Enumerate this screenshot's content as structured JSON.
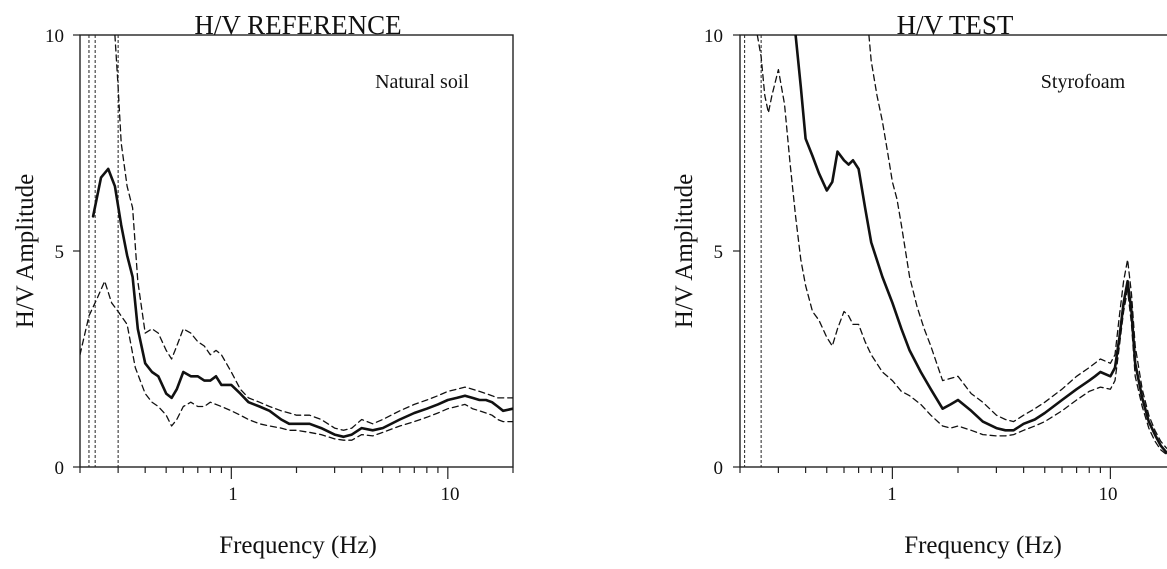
{
  "chart_data": [
    {
      "type": "line",
      "title": "H/V REFERENCE",
      "annotation": "Natural soil",
      "xlabel": "Frequency (Hz)",
      "ylabel": "H/V Amplitude",
      "x_scale": "log",
      "xlim": [
        0.2,
        20
      ],
      "ylim": [
        0,
        10
      ],
      "x_tick_labels": [
        "1",
        "10"
      ],
      "y_tick_labels": [
        "0",
        "5",
        "10"
      ],
      "grid": false,
      "vertical_lines_hz": [
        0.22,
        0.235,
        0.3
      ],
      "series": [
        {
          "style": "solid",
          "x": [
            0.23,
            0.25,
            0.27,
            0.29,
            0.31,
            0.33,
            0.35,
            0.37,
            0.4,
            0.43,
            0.46,
            0.5,
            0.53,
            0.56,
            0.6,
            0.65,
            0.7,
            0.75,
            0.8,
            0.85,
            0.9,
            1.0,
            1.1,
            1.2,
            1.35,
            1.5,
            1.7,
            1.85,
            2.0,
            2.3,
            2.6,
            3.0,
            3.3,
            3.6,
            4.0,
            4.5,
            5.0,
            6.0,
            7.0,
            8.0,
            9.0,
            10.0,
            11.0,
            12.0,
            13.0,
            14.0,
            15.0,
            16.0,
            17.0,
            18.0,
            20.0
          ],
          "y": [
            5.8,
            6.7,
            6.9,
            6.5,
            5.6,
            4.9,
            4.4,
            3.2,
            2.4,
            2.2,
            2.1,
            1.7,
            1.6,
            1.8,
            2.2,
            2.1,
            2.1,
            2.0,
            2.0,
            2.1,
            1.9,
            1.9,
            1.7,
            1.5,
            1.4,
            1.3,
            1.1,
            1.0,
            1.0,
            1.0,
            0.9,
            0.75,
            0.7,
            0.75,
            0.9,
            0.85,
            0.9,
            1.1,
            1.25,
            1.35,
            1.45,
            1.55,
            1.6,
            1.65,
            1.6,
            1.55,
            1.55,
            1.5,
            1.4,
            1.3,
            1.35
          ]
        },
        {
          "style": "dashed",
          "x": [
            0.29,
            0.3,
            0.31,
            0.33,
            0.35,
            0.37,
            0.4,
            0.43,
            0.46,
            0.5,
            0.53,
            0.56,
            0.6,
            0.65,
            0.7,
            0.75,
            0.8,
            0.85,
            0.9,
            1.0,
            1.1,
            1.2,
            1.35,
            1.5,
            1.7,
            1.85,
            2.0,
            2.3,
            2.6,
            3.0,
            3.3,
            3.6,
            4.0,
            4.5,
            5.0,
            6.0,
            7.0,
            8.0,
            9.0,
            10.0,
            11.0,
            12.0,
            13.0,
            14.0,
            15.0,
            16.0,
            17.0,
            18.0,
            20.0
          ],
          "y": [
            10.0,
            8.8,
            7.5,
            6.5,
            6.0,
            4.3,
            3.1,
            3.2,
            3.1,
            2.7,
            2.5,
            2.8,
            3.2,
            3.1,
            2.9,
            2.8,
            2.6,
            2.7,
            2.6,
            2.2,
            1.8,
            1.6,
            1.5,
            1.4,
            1.3,
            1.25,
            1.2,
            1.2,
            1.1,
            0.9,
            0.85,
            0.9,
            1.1,
            1.0,
            1.1,
            1.3,
            1.45,
            1.55,
            1.65,
            1.75,
            1.8,
            1.85,
            1.8,
            1.75,
            1.7,
            1.65,
            1.6,
            1.6,
            1.6
          ]
        },
        {
          "style": "dashed",
          "x": [
            0.2,
            0.22,
            0.24,
            0.26,
            0.28,
            0.3,
            0.33,
            0.36,
            0.4,
            0.43,
            0.46,
            0.5,
            0.53,
            0.56,
            0.6,
            0.65,
            0.7,
            0.75,
            0.8,
            0.9,
            1.0,
            1.1,
            1.2,
            1.35,
            1.5,
            1.7,
            1.85,
            2.0,
            2.3,
            2.6,
            3.0,
            3.3,
            3.6,
            4.0,
            4.5,
            5.0,
            6.0,
            7.0,
            8.0,
            9.0,
            10.0,
            11.0,
            12.0,
            13.0,
            14.0,
            15.0,
            16.0,
            17.0,
            18.0,
            20.0
          ],
          "y": [
            2.6,
            3.5,
            3.9,
            4.3,
            3.8,
            3.6,
            3.3,
            2.3,
            1.7,
            1.5,
            1.4,
            1.2,
            0.95,
            1.1,
            1.4,
            1.5,
            1.4,
            1.4,
            1.5,
            1.4,
            1.3,
            1.2,
            1.1,
            1.0,
            0.95,
            0.9,
            0.85,
            0.85,
            0.8,
            0.75,
            0.65,
            0.62,
            0.62,
            0.75,
            0.72,
            0.8,
            0.95,
            1.05,
            1.15,
            1.25,
            1.35,
            1.4,
            1.45,
            1.35,
            1.3,
            1.25,
            1.2,
            1.1,
            1.05,
            1.05
          ]
        }
      ]
    },
    {
      "type": "line",
      "title": "H/V TEST",
      "annotation": "Styrofoam",
      "xlabel": "Frequency (Hz)",
      "ylabel": "H/V Amplitude",
      "x_scale": "log",
      "xlim": [
        0.2,
        20
      ],
      "ylim": [
        0,
        10
      ],
      "x_tick_labels": [
        "1",
        "10"
      ],
      "y_tick_labels": [
        "0",
        "5",
        "10"
      ],
      "grid": false,
      "vertical_lines_hz": [
        0.21,
        0.25
      ],
      "series": [
        {
          "style": "solid",
          "x": [
            0.36,
            0.38,
            0.4,
            0.43,
            0.46,
            0.5,
            0.53,
            0.56,
            0.6,
            0.63,
            0.66,
            0.7,
            0.75,
            0.8,
            0.9,
            1.0,
            1.1,
            1.2,
            1.35,
            1.5,
            1.7,
            1.85,
            2.0,
            2.3,
            2.6,
            3.0,
            3.3,
            3.6,
            4.0,
            4.5,
            5.0,
            6.0,
            7.0,
            8.0,
            8.5,
            9.0,
            10.0,
            10.5,
            11.0,
            11.5,
            12.0,
            12.5,
            13.0,
            14.0,
            15.0,
            16.0,
            17.0,
            18.0,
            19.0,
            20.0
          ],
          "y": [
            10.0,
            8.8,
            7.6,
            7.2,
            6.8,
            6.4,
            6.6,
            7.3,
            7.1,
            7.0,
            7.1,
            6.9,
            6.0,
            5.2,
            4.4,
            3.8,
            3.2,
            2.7,
            2.2,
            1.8,
            1.35,
            1.45,
            1.55,
            1.3,
            1.05,
            0.9,
            0.85,
            0.85,
            1.0,
            1.1,
            1.25,
            1.55,
            1.8,
            2.0,
            2.1,
            2.2,
            2.1,
            2.3,
            3.0,
            3.8,
            4.3,
            3.6,
            2.4,
            1.6,
            1.05,
            0.75,
            0.5,
            0.35,
            0.25,
            0.2
          ]
        },
        {
          "style": "dashed",
          "x": [
            0.78,
            0.8,
            0.85,
            0.9,
            0.95,
            1.0,
            1.05,
            1.1,
            1.2,
            1.3,
            1.4,
            1.5,
            1.7,
            1.85,
            2.0,
            2.3,
            2.6,
            3.0,
            3.3,
            3.6,
            4.0,
            4.5,
            5.0,
            6.0,
            7.0,
            8.0,
            9.0,
            10.0,
            10.5,
            11.0,
            11.5,
            12.0,
            12.5,
            13.0,
            14.0,
            15.0,
            16.0,
            17.0,
            18.0,
            19.0,
            20.0
          ],
          "y": [
            10.0,
            9.4,
            8.6,
            8.0,
            7.3,
            6.6,
            6.2,
            5.6,
            4.4,
            3.7,
            3.2,
            2.8,
            2.0,
            2.05,
            2.1,
            1.7,
            1.5,
            1.2,
            1.1,
            1.05,
            1.2,
            1.35,
            1.5,
            1.8,
            2.1,
            2.3,
            2.5,
            2.4,
            2.6,
            3.5,
            4.3,
            4.8,
            4.0,
            2.8,
            1.8,
            1.2,
            0.85,
            0.6,
            0.45,
            0.35,
            0.3
          ]
        },
        {
          "style": "dashed",
          "x": [
            0.24,
            0.25,
            0.26,
            0.27,
            0.28,
            0.3,
            0.32,
            0.34,
            0.36,
            0.38,
            0.4,
            0.43,
            0.46,
            0.5,
            0.53,
            0.56,
            0.6,
            0.63,
            0.66,
            0.7,
            0.75,
            0.8,
            0.9,
            1.0,
            1.1,
            1.2,
            1.35,
            1.5,
            1.7,
            1.85,
            2.0,
            2.3,
            2.6,
            3.0,
            3.3,
            3.6,
            4.0,
            4.5,
            5.0,
            6.0,
            7.0,
            8.0,
            9.0,
            10.0,
            10.5,
            11.0,
            11.5,
            12.0,
            12.5,
            13.0,
            14.0,
            15.0,
            16.0,
            17.0,
            18.0,
            19.0,
            20.0
          ],
          "y": [
            10.0,
            9.5,
            8.6,
            8.2,
            8.6,
            9.2,
            8.4,
            7.0,
            5.8,
            4.8,
            4.2,
            3.6,
            3.4,
            3.0,
            2.8,
            3.2,
            3.6,
            3.5,
            3.3,
            3.3,
            2.9,
            2.6,
            2.2,
            2.0,
            1.75,
            1.65,
            1.45,
            1.2,
            0.95,
            0.9,
            0.95,
            0.85,
            0.75,
            0.72,
            0.72,
            0.75,
            0.85,
            0.95,
            1.05,
            1.3,
            1.55,
            1.75,
            1.85,
            1.8,
            2.0,
            2.8,
            3.6,
            4.1,
            3.3,
            2.1,
            1.4,
            0.9,
            0.6,
            0.4,
            0.3,
            0.22,
            0.18
          ]
        }
      ]
    }
  ]
}
